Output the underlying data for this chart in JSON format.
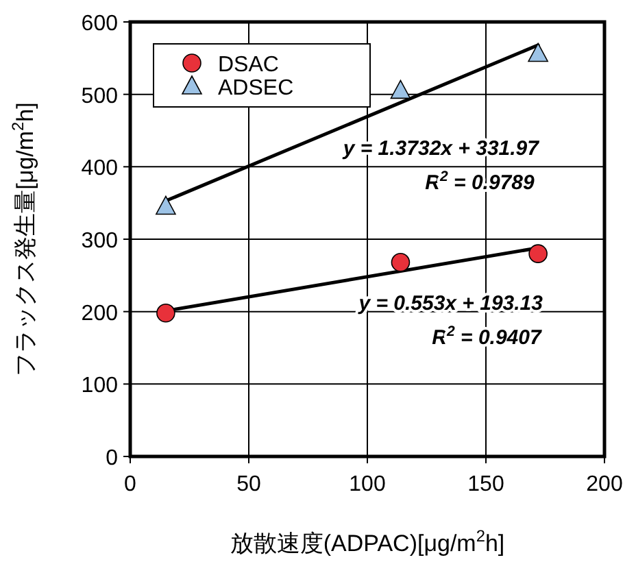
{
  "chart_data": {
    "type": "scatter",
    "xlabel": "放散速度(ADPAC)[μg/m$^{2}$h]",
    "ylabel": "フラックス発生量[μg/m$^{2}$h]",
    "xlim": [
      0,
      200
    ],
    "xticks": [
      0,
      50,
      100,
      150,
      200
    ],
    "ylim": [
      0,
      600
    ],
    "yticks": [
      0,
      100,
      200,
      300,
      400,
      500,
      600
    ],
    "grid": true,
    "legend": "top left",
    "series": [
      {
        "name": "DSAC",
        "type": "scatter",
        "marker": "circle",
        "color": "#e8313a",
        "x": [
          15,
          114,
          172
        ],
        "values": [
          198,
          268,
          280
        ]
      },
      {
        "name": "ADSEC",
        "type": "scatter",
        "marker": "triangle",
        "color": "#9dc3e6",
        "x": [
          15,
          114,
          172
        ],
        "values": [
          345,
          505,
          556
        ]
      },
      {
        "type": "line",
        "color": "#000000",
        "x": [
          15,
          172
        ],
        "values": [
          201,
          288
        ]
      },
      {
        "type": "line",
        "color": "#000000",
        "x": [
          15,
          172
        ],
        "values": [
          353,
          568
        ]
      }
    ],
    "annotations": [
      "y = 1.3732x + 331.97",
      "R$^{2}$ = 0.9789",
      "y = 0.553x + 193.13",
      "R$^{2}$ = 0.9407"
    ]
  }
}
